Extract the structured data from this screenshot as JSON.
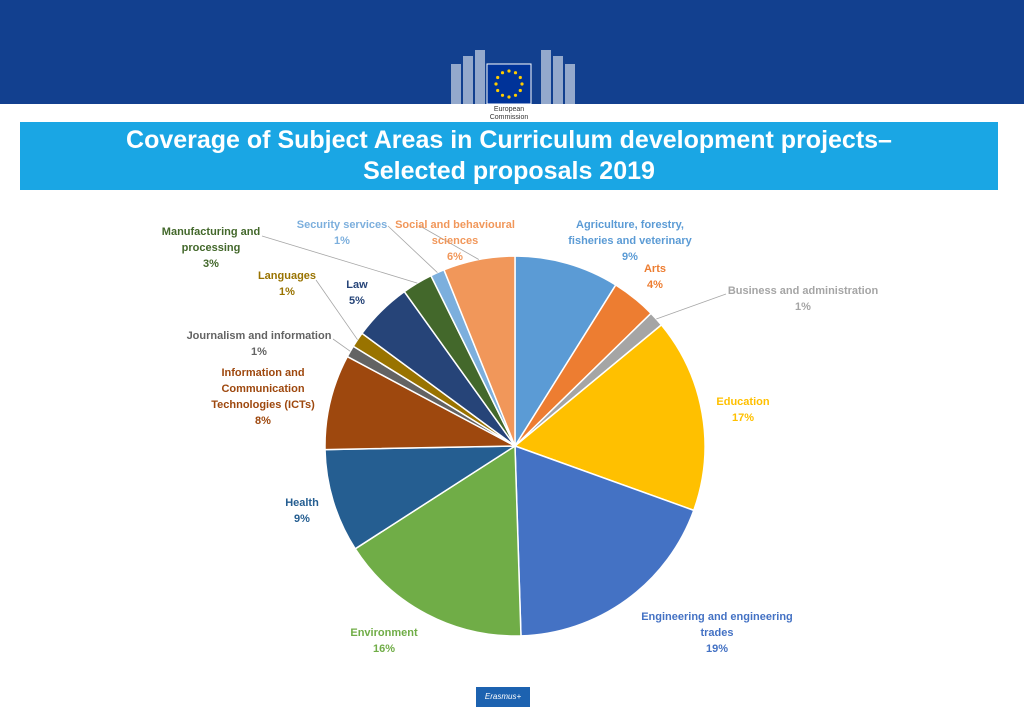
{
  "header": {
    "logo_text_line1": "European",
    "logo_text_line2": "Commission",
    "title_line1": "Coverage of Subject Areas in Curriculum development projects–",
    "title_line2": "Selected proposals 2019"
  },
  "footer": {
    "logo_text": "Erasmus+"
  },
  "colors": {
    "top_band": "#12408f",
    "title_bar": "#1aa6e4"
  },
  "chart_data": {
    "type": "pie",
    "title": "Coverage of Subject Areas in Curriculum development projects– Selected proposals 2019",
    "legend": "none",
    "slices": [
      {
        "label": "Agriculture, forestry, fisheries and veterinary",
        "label_lines": [
          "Agriculture, forestry,",
          "fisheries and veterinary"
        ],
        "value_label": "9%",
        "value": 8.9,
        "color": "#5b9bd5",
        "text_color": "#5b9bd5"
      },
      {
        "label": "Arts",
        "label_lines": [
          "Arts"
        ],
        "value_label": "4%",
        "value": 3.8,
        "color": "#ed7d31",
        "text_color": "#ed7d31"
      },
      {
        "label": "Business and administration",
        "label_lines": [
          "Business and administration"
        ],
        "value_label": "1%",
        "value": 1.3,
        "color": "#a5a5a5",
        "text_color": "#a5a5a5"
      },
      {
        "label": "Education",
        "label_lines": [
          "Education"
        ],
        "value_label": "17%",
        "value": 16.5,
        "color": "#ffc000",
        "text_color": "#ffc000"
      },
      {
        "label": "Engineering and engineering trades",
        "label_lines": [
          "Engineering and engineering",
          "trades"
        ],
        "value_label": "19%",
        "value": 19.0,
        "color": "#4472c4",
        "text_color": "#4472c4"
      },
      {
        "label": "Environment",
        "label_lines": [
          "Environment"
        ],
        "value_label": "16%",
        "value": 16.4,
        "color": "#70ad47",
        "text_color": "#70ad47"
      },
      {
        "label": "Health",
        "label_lines": [
          "Health"
        ],
        "value_label": "9%",
        "value": 8.8,
        "color": "#255e91",
        "text_color": "#255e91"
      },
      {
        "label": "Information and Communication Technologies (ICTs)",
        "label_lines": [
          "Information and",
          "Communication",
          "Technologies (ICTs)"
        ],
        "value_label": "8%",
        "value": 8.1,
        "color": "#9e480e",
        "text_color": "#9e480e"
      },
      {
        "label": "Journalism and information",
        "label_lines": [
          "Journalism and information"
        ],
        "value_label": "1%",
        "value": 1.0,
        "color": "#636363",
        "text_color": "#636363"
      },
      {
        "label": "Languages",
        "label_lines": [
          "Languages"
        ],
        "value_label": "1%",
        "value": 1.3,
        "color": "#997300",
        "text_color": "#997300"
      },
      {
        "label": "Law",
        "label_lines": [
          "Law"
        ],
        "value_label": "5%",
        "value": 5.0,
        "color": "#264478",
        "text_color": "#264478"
      },
      {
        "label": "Manufacturing and processing",
        "label_lines": [
          "Manufacturing and",
          "processing"
        ],
        "value_label": "3%",
        "value": 2.6,
        "color": "#43682b",
        "text_color": "#43682b"
      },
      {
        "label": "Security services",
        "label_lines": [
          "Security services"
        ],
        "value_label": "1%",
        "value": 1.2,
        "color": "#7cafdd",
        "text_color": "#7cafdd"
      },
      {
        "label": "Social and behavioural sciences",
        "label_lines": [
          "Social and behavioural",
          "sciences"
        ],
        "value_label": "6%",
        "value": 6.1,
        "color": "#f1975a",
        "text_color": "#f1975a"
      }
    ]
  }
}
